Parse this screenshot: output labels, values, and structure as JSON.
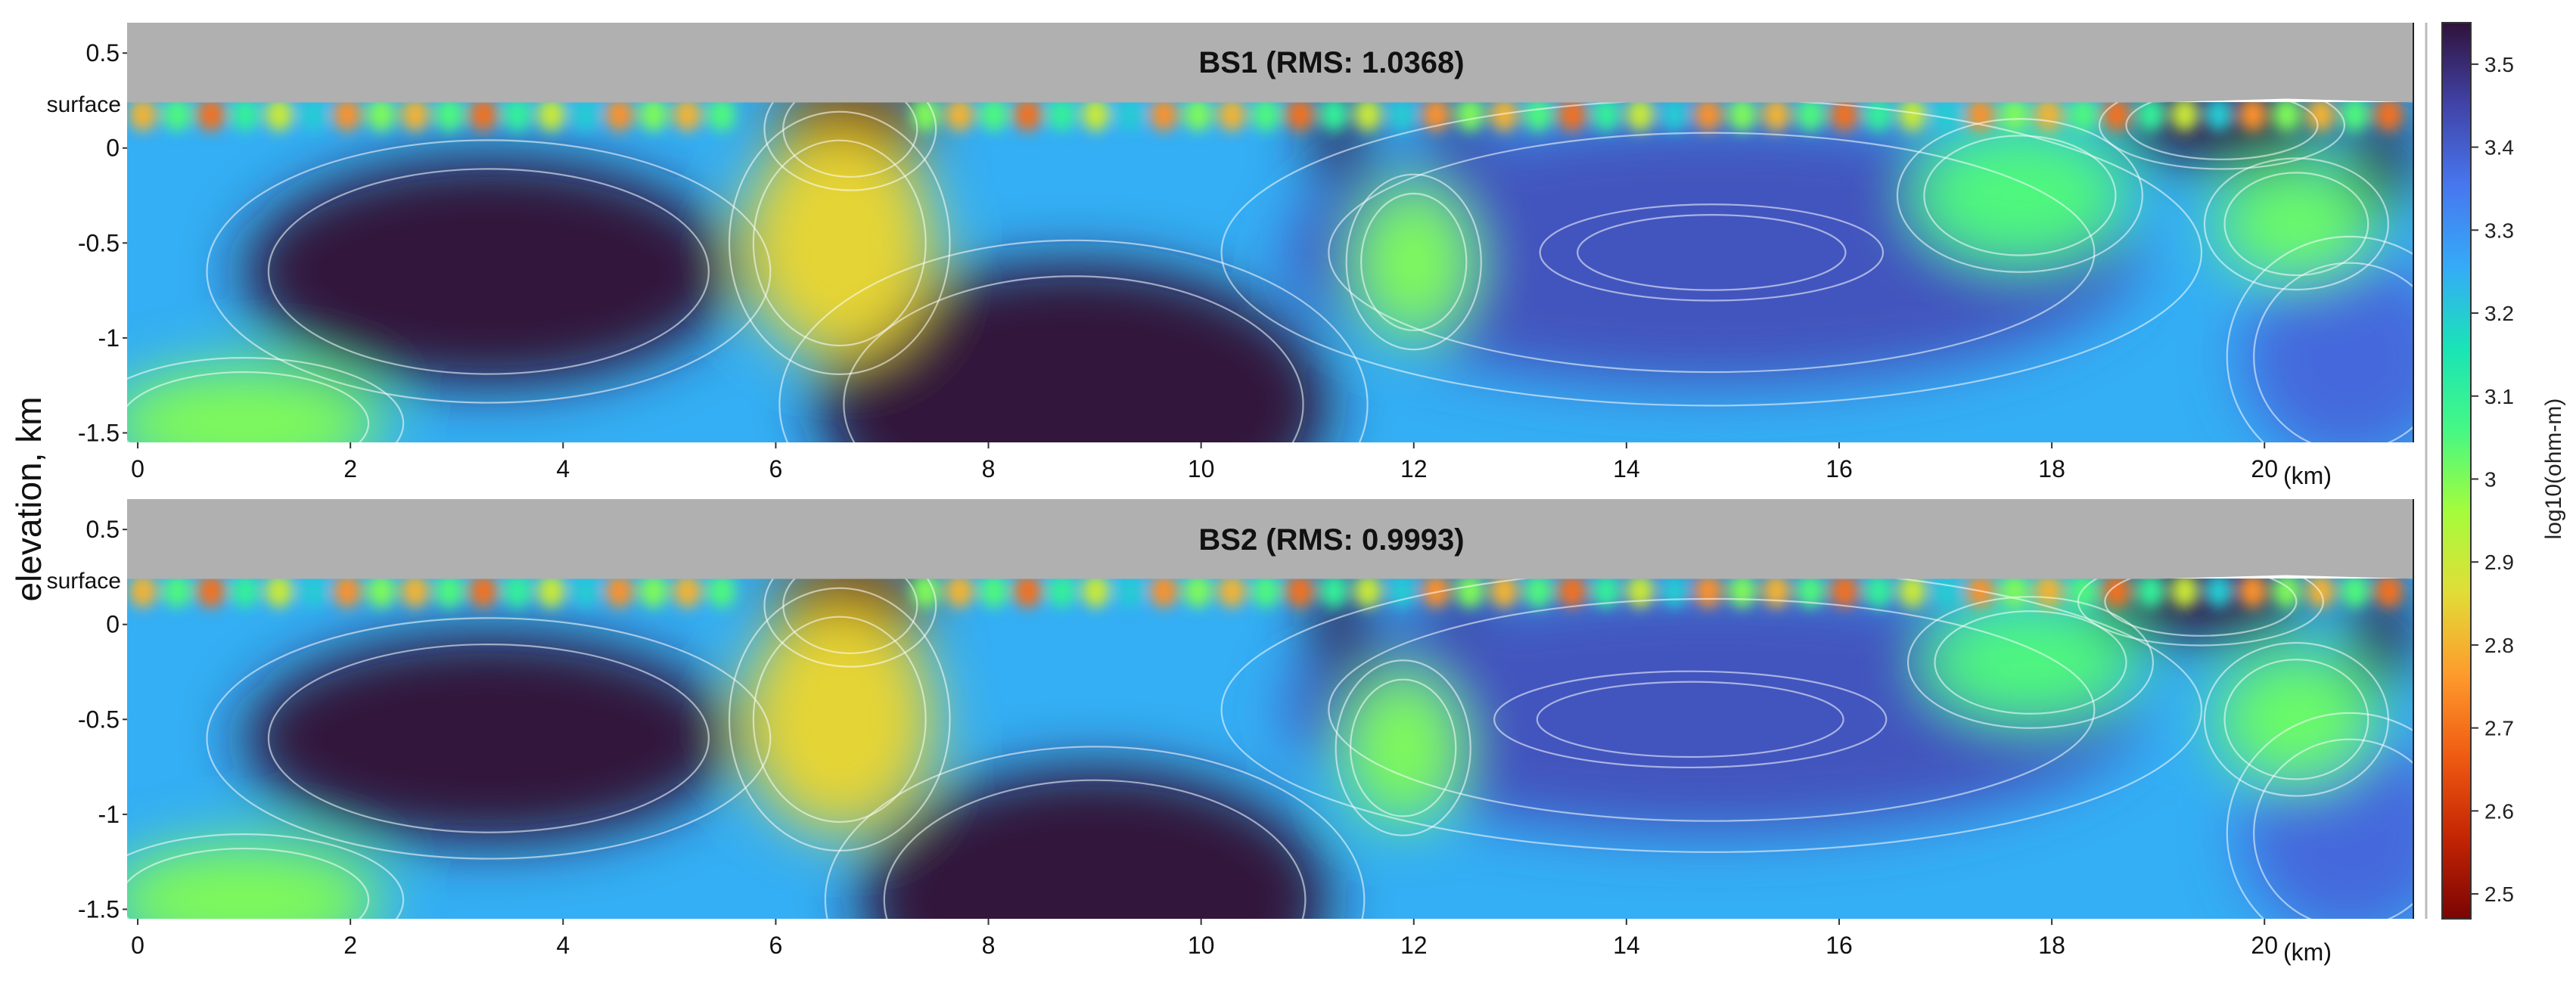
{
  "figure": {
    "ylabel": "elevation, km",
    "colorbar_label": "log10(ohm-m)"
  },
  "chart_data": [
    {
      "type": "heatmap",
      "title": "BS1 (RMS: 1.0368)",
      "xlabel": "(km)",
      "surface_label": "surface",
      "xlim": [
        -0.1,
        21.4
      ],
      "ylim": [
        -1.55,
        0.66
      ],
      "xticks": [
        0,
        2,
        4,
        6,
        8,
        10,
        12,
        14,
        16,
        18,
        20
      ],
      "yticks": [
        0.5,
        0,
        -0.5,
        -1,
        -1.5
      ],
      "ytick_labels": [
        "0.5",
        "0",
        "-0.5",
        "-1",
        "-1.5"
      ],
      "surface_elevation": 0.24,
      "features": [
        {
          "kind": "resistive",
          "x": 3.3,
          "y": -0.65,
          "rx": 2.3,
          "ry": 0.6,
          "value": 3.75
        },
        {
          "kind": "resistive",
          "x": 8.8,
          "y": -1.35,
          "rx": 2.4,
          "ry": 0.75,
          "value": 3.75
        },
        {
          "kind": "resistive",
          "x": 14.8,
          "y": -0.55,
          "rx": 1.4,
          "ry": 0.22,
          "value": 3.55
        },
        {
          "kind": "resistive",
          "x": 13.4,
          "y": -0.55,
          "rx": 0.4,
          "ry": 0.3,
          "value": 3.5
        },
        {
          "kind": "moderate",
          "x": 14.8,
          "y": -0.55,
          "rx": 4.0,
          "ry": 0.7,
          "value": 3.42
        },
        {
          "kind": "moderate",
          "x": 20.8,
          "y": -1.1,
          "rx": 1.0,
          "ry": 0.55,
          "value": 3.38
        },
        {
          "kind": "conductive",
          "x": 6.7,
          "y": 0.1,
          "rx": 0.7,
          "ry": 0.28,
          "value": 2.45
        },
        {
          "kind": "conductive",
          "x": 6.6,
          "y": -0.5,
          "rx": 0.9,
          "ry": 0.6,
          "value": 2.85
        },
        {
          "kind": "conductive",
          "x": 1.0,
          "y": -1.45,
          "rx": 1.3,
          "ry": 0.3,
          "value": 3.0
        },
        {
          "kind": "intermediate",
          "x": 12.0,
          "y": -0.6,
          "rx": 0.55,
          "ry": 0.4,
          "value": 3.0
        },
        {
          "kind": "intermediate",
          "x": 20.3,
          "y": -0.4,
          "rx": 0.75,
          "ry": 0.3,
          "value": 3.02
        },
        {
          "kind": "intermediate",
          "x": 17.7,
          "y": -0.25,
          "rx": 1.0,
          "ry": 0.35,
          "value": 3.05
        },
        {
          "kind": "resistive",
          "x": 11.3,
          "y": 0.05,
          "rx": 0.25,
          "ry": 0.25,
          "value": 3.55
        },
        {
          "kind": "resistive",
          "x": 12.4,
          "y": 0.15,
          "rx": 0.22,
          "ry": 0.16,
          "value": 3.5
        },
        {
          "kind": "resistive",
          "x": 19.6,
          "y": 0.12,
          "rx": 1.0,
          "ry": 0.2,
          "value": 3.55
        },
        {
          "kind": "resistive",
          "x": 21.1,
          "y": -0.05,
          "rx": 0.25,
          "ry": 0.3,
          "value": 3.6
        }
      ]
    },
    {
      "type": "heatmap",
      "title": "BS2 (RMS: 0.9993)",
      "xlabel": "(km)",
      "surface_label": "surface",
      "xlim": [
        -0.1,
        21.4
      ],
      "ylim": [
        -1.55,
        0.66
      ],
      "xticks": [
        0,
        2,
        4,
        6,
        8,
        10,
        12,
        14,
        16,
        18,
        20
      ],
      "yticks": [
        0.5,
        0,
        -0.5,
        -1,
        -1.5
      ],
      "ytick_labels": [
        "0.5",
        "0",
        "-0.5",
        "-1",
        "-1.5"
      ],
      "surface_elevation": 0.24,
      "features": [
        {
          "kind": "resistive",
          "x": 3.3,
          "y": -0.6,
          "rx": 2.3,
          "ry": 0.55,
          "value": 3.75
        },
        {
          "kind": "resistive",
          "x": 9.0,
          "y": -1.45,
          "rx": 2.2,
          "ry": 0.7,
          "value": 3.75
        },
        {
          "kind": "resistive",
          "x": 14.6,
          "y": -0.5,
          "rx": 1.6,
          "ry": 0.22,
          "value": 3.55
        },
        {
          "kind": "moderate",
          "x": 14.8,
          "y": -0.45,
          "rx": 4.0,
          "ry": 0.65,
          "value": 3.42
        },
        {
          "kind": "moderate",
          "x": 20.8,
          "y": -1.1,
          "rx": 1.0,
          "ry": 0.55,
          "value": 3.38
        },
        {
          "kind": "conductive",
          "x": 6.7,
          "y": 0.1,
          "rx": 0.7,
          "ry": 0.28,
          "value": 2.45
        },
        {
          "kind": "conductive",
          "x": 6.6,
          "y": -0.5,
          "rx": 0.9,
          "ry": 0.6,
          "value": 2.85
        },
        {
          "kind": "conductive",
          "x": 1.0,
          "y": -1.45,
          "rx": 1.3,
          "ry": 0.3,
          "value": 3.0
        },
        {
          "kind": "intermediate",
          "x": 11.9,
          "y": -0.65,
          "rx": 0.55,
          "ry": 0.4,
          "value": 3.0
        },
        {
          "kind": "intermediate",
          "x": 20.3,
          "y": -0.5,
          "rx": 0.75,
          "ry": 0.35,
          "value": 3.02
        },
        {
          "kind": "intermediate",
          "x": 17.8,
          "y": -0.2,
          "rx": 1.0,
          "ry": 0.3,
          "value": 3.05
        },
        {
          "kind": "resistive",
          "x": 11.3,
          "y": 0.0,
          "rx": 0.25,
          "ry": 0.3,
          "value": 3.55
        },
        {
          "kind": "resistive",
          "x": 12.4,
          "y": 0.15,
          "rx": 0.22,
          "ry": 0.16,
          "value": 3.5
        },
        {
          "kind": "resistive",
          "x": 19.4,
          "y": 0.12,
          "rx": 1.0,
          "ry": 0.2,
          "value": 3.55
        },
        {
          "kind": "resistive",
          "x": 21.1,
          "y": -0.05,
          "rx": 0.25,
          "ry": 0.3,
          "value": 3.6
        }
      ]
    }
  ],
  "colorbar": {
    "min": 2.47,
    "max": 3.55,
    "ticks": [
      3.5,
      3.4,
      3.3,
      3.2,
      3.1,
      3,
      2.9,
      2.8,
      2.7,
      2.6,
      2.5
    ],
    "tick_labels": [
      "3.5",
      "3.4",
      "3.3",
      "3.2",
      "3.1",
      "3",
      "2.9",
      "2.8",
      "2.7",
      "2.6",
      "2.5"
    ],
    "colormap": [
      "#7a0403",
      "#c42503",
      "#f05b12",
      "#fe9b2d",
      "#e1dd37",
      "#a4fc3c",
      "#46f884",
      "#1ae4b6",
      "#35abf8",
      "#4777ef",
      "#4143a7",
      "#30123b"
    ]
  }
}
